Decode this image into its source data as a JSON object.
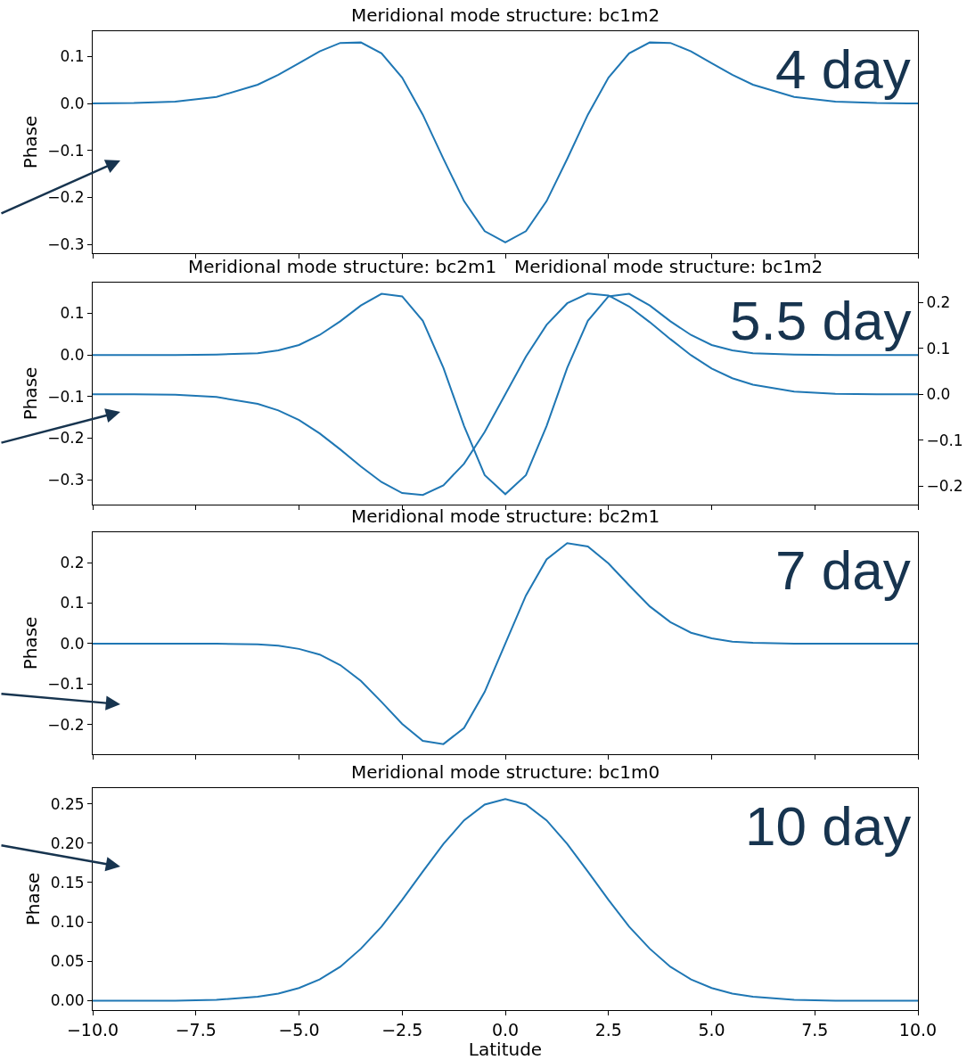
{
  "chart_data": [
    {
      "type": "line",
      "title": "Meridional mode structure: bc1m2",
      "ylabel": "Phase",
      "annotations": [
        "4 day"
      ],
      "tick_labels": "y",
      "x": [
        -10,
        -9,
        -8,
        -7,
        -6,
        -5.5,
        -5,
        -4.5,
        -4,
        -3.5,
        -3,
        -2.5,
        -2,
        -1.5,
        -1,
        -0.5,
        0,
        0.5,
        1,
        1.5,
        2,
        2.5,
        3,
        3.5,
        4,
        4.5,
        5,
        5.5,
        6,
        7,
        8,
        9,
        10
      ],
      "series": [
        {
          "color": "#1f77b4",
          "values": [
            0.0,
            0.001,
            0.004,
            0.014,
            0.04,
            0.061,
            0.086,
            0.111,
            0.129,
            0.13,
            0.107,
            0.055,
            -0.024,
            -0.118,
            -0.208,
            -0.272,
            -0.296,
            -0.272,
            -0.208,
            -0.118,
            -0.024,
            0.055,
            0.107,
            0.13,
            0.129,
            0.111,
            0.086,
            0.061,
            0.04,
            0.014,
            0.004,
            0.001,
            0.0
          ]
        }
      ],
      "xlim": [
        -10,
        10
      ],
      "xticks": [
        {
          "value": -10,
          "label": null
        },
        {
          "value": -7.5,
          "label": null
        },
        {
          "value": -5,
          "label": null
        },
        {
          "value": -2.5,
          "label": null
        },
        {
          "value": 0,
          "label": null
        },
        {
          "value": 2.5,
          "label": null
        },
        {
          "value": 5,
          "label": null
        },
        {
          "value": 7.5,
          "label": null
        },
        {
          "value": 10,
          "label": null
        }
      ],
      "ylim": [
        -0.319,
        0.154
      ],
      "yticks": [
        {
          "value": -0.3,
          "label": "−0.3"
        },
        {
          "value": -0.2,
          "label": "−0.2"
        },
        {
          "value": -0.1,
          "label": "−0.1"
        },
        {
          "value": 0,
          "label": "0.0"
        },
        {
          "value": 0.1,
          "label": "0.1"
        }
      ]
    },
    {
      "type": "line",
      "title": "Meridional mode structure: bc2m1",
      "subtitle": "Meridional mode structure: bc1m2",
      "ylabel": "Phase",
      "annotations": [
        "5.5 day"
      ],
      "tick_labels": "y",
      "x": [
        -10,
        -9,
        -8,
        -7,
        -6,
        -5.5,
        -5,
        -4.5,
        -4,
        -3.5,
        -3,
        -2.5,
        -2,
        -1.5,
        -1,
        -0.5,
        0,
        0.5,
        1,
        1.5,
        2,
        2.5,
        3,
        3.5,
        4,
        4.5,
        5,
        5.5,
        6,
        7,
        8,
        9,
        10
      ],
      "series": [
        {
          "color": "#1f77b4",
          "values": [
            0,
            0,
            0,
            0.001,
            0.004,
            0.011,
            0.024,
            0.048,
            0.081,
            0.119,
            0.147,
            0.141,
            0.082,
            -0.031,
            -0.171,
            -0.289,
            -0.335,
            -0.289,
            -0.171,
            -0.031,
            0.082,
            0.141,
            0.147,
            0.119,
            0.081,
            0.048,
            0.024,
            0.011,
            0.004,
            0.001,
            0,
            0,
            0
          ]
        },
        {
          "color": "#1f77b4",
          "axis": "y2",
          "values": [
            0,
            0,
            -0.001,
            -0.006,
            -0.021,
            -0.035,
            -0.056,
            -0.085,
            -0.12,
            -0.157,
            -0.191,
            -0.215,
            -0.219,
            -0.198,
            -0.151,
            -0.082,
            0,
            0.082,
            0.151,
            0.198,
            0.219,
            0.215,
            0.191,
            0.157,
            0.12,
            0.085,
            0.056,
            0.035,
            0.021,
            0.006,
            0.001,
            0,
            0
          ]
        }
      ],
      "xlim": [
        -10,
        10
      ],
      "xticks": [
        {
          "value": -10,
          "label": null
        },
        {
          "value": -7.5,
          "label": null
        },
        {
          "value": -5,
          "label": null
        },
        {
          "value": -2.5,
          "label": null
        },
        {
          "value": 0,
          "label": null
        },
        {
          "value": 2.5,
          "label": null
        },
        {
          "value": 5,
          "label": null
        },
        {
          "value": 7.5,
          "label": null
        },
        {
          "value": 10,
          "label": null
        }
      ],
      "ylim": [
        -0.36,
        0.174
      ],
      "yticks": [
        {
          "value": -0.3,
          "label": "−0.3"
        },
        {
          "value": -0.2,
          "label": "−0.2"
        },
        {
          "value": -0.1,
          "label": "−0.1"
        },
        {
          "value": 0,
          "label": "0.0"
        },
        {
          "value": 0.1,
          "label": "0.1"
        }
      ],
      "y2lim": [
        -0.24,
        0.243
      ],
      "y2ticks": [
        {
          "value": -0.2,
          "label": "−0.2"
        },
        {
          "value": -0.1,
          "label": "−0.1"
        },
        {
          "value": 0,
          "label": "0.0"
        },
        {
          "value": 0.1,
          "label": "0.1"
        },
        {
          "value": 0.2,
          "label": "0.2"
        }
      ]
    },
    {
      "type": "line",
      "title": "Meridional mode structure: bc2m1",
      "ylabel": "Phase",
      "annotations": [
        "7 day"
      ],
      "tick_labels": "y",
      "x": [
        -10,
        -9,
        -8,
        -7,
        -6,
        -5.5,
        -5,
        -4.5,
        -4,
        -3.5,
        -3,
        -2.5,
        -2,
        -1.5,
        -1,
        -0.5,
        0,
        0.5,
        1,
        1.5,
        2,
        2.5,
        3,
        3.5,
        4,
        4.5,
        5,
        5.5,
        6,
        7,
        8,
        9,
        10
      ],
      "series": [
        {
          "color": "#1f77b4",
          "values": [
            0,
            0,
            0,
            0,
            -0.002,
            -0.005,
            -0.013,
            -0.027,
            -0.053,
            -0.092,
            -0.144,
            -0.198,
            -0.24,
            -0.248,
            -0.208,
            -0.119,
            0,
            0.119,
            0.208,
            0.248,
            0.24,
            0.198,
            0.144,
            0.092,
            0.053,
            0.027,
            0.013,
            0.005,
            0.002,
            0,
            0,
            0,
            0
          ]
        }
      ],
      "xlim": [
        -10,
        10
      ],
      "xticks": [
        {
          "value": -10,
          "label": null
        },
        {
          "value": -7.5,
          "label": null
        },
        {
          "value": -5,
          "label": null
        },
        {
          "value": -2.5,
          "label": null
        },
        {
          "value": 0,
          "label": null
        },
        {
          "value": 2.5,
          "label": null
        },
        {
          "value": 5,
          "label": null
        },
        {
          "value": 7.5,
          "label": null
        },
        {
          "value": 10,
          "label": null
        }
      ],
      "ylim": [
        -0.273,
        0.275
      ],
      "yticks": [
        {
          "value": -0.2,
          "label": "−0.2"
        },
        {
          "value": -0.1,
          "label": "−0.1"
        },
        {
          "value": 0,
          "label": "0.0"
        },
        {
          "value": 0.1,
          "label": "0.1"
        },
        {
          "value": 0.2,
          "label": "0.2"
        }
      ]
    },
    {
      "type": "line",
      "title": "Meridional mode structure: bc1m0",
      "xlabel": "Latitude",
      "ylabel": "Phase",
      "annotations": [
        "10 day"
      ],
      "x": [
        -10,
        -9,
        -8,
        -7,
        -6,
        -5.5,
        -5,
        -4.5,
        -4,
        -3.5,
        -3,
        -2.5,
        -2,
        -1.5,
        -1,
        -0.5,
        0,
        0.5,
        1,
        1.5,
        2,
        2.5,
        3,
        3.5,
        4,
        4.5,
        5,
        5.5,
        6,
        7,
        8,
        9,
        10
      ],
      "series": [
        {
          "color": "#1f77b4",
          "values": [
            0,
            0,
            0,
            0.001,
            0.005,
            0.009,
            0.016,
            0.027,
            0.043,
            0.066,
            0.094,
            0.128,
            0.164,
            0.199,
            0.229,
            0.249,
            0.256,
            0.249,
            0.229,
            0.199,
            0.164,
            0.128,
            0.094,
            0.066,
            0.043,
            0.027,
            0.016,
            0.009,
            0.005,
            0.001,
            0,
            0,
            0
          ]
        }
      ],
      "xlim": [
        -10,
        10
      ],
      "xticks": [
        {
          "value": -10,
          "label": "−10.0"
        },
        {
          "value": -7.5,
          "label": "−7.5"
        },
        {
          "value": -5,
          "label": "−5.0"
        },
        {
          "value": -2.5,
          "label": "−2.5"
        },
        {
          "value": 0,
          "label": "0.0"
        },
        {
          "value": 2.5,
          "label": "2.5"
        },
        {
          "value": 5,
          "label": "5.0"
        },
        {
          "value": 7.5,
          "label": "7.5"
        },
        {
          "value": 10,
          "label": "10.0"
        }
      ],
      "ylim": [
        -0.012,
        0.27
      ],
      "yticks": [
        {
          "value": 0,
          "label": "0.00"
        },
        {
          "value": 0.05,
          "label": "0.05"
        },
        {
          "value": 0.1,
          "label": "0.10"
        },
        {
          "value": 0.15,
          "label": "0.15"
        },
        {
          "value": 0.2,
          "label": "0.20"
        },
        {
          "value": 0.25,
          "label": "0.25"
        }
      ]
    }
  ]
}
